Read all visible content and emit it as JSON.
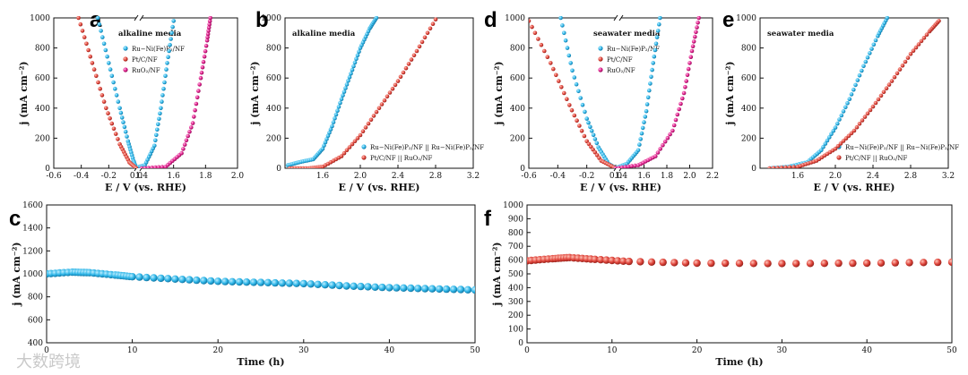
{
  "colors": {
    "blue": "#2fb6e8",
    "red": "#e0463d",
    "magenta": "#e0208c"
  },
  "watermark": "大数跨境",
  "chart_data": [
    {
      "panel": "a",
      "type": "scatter",
      "note": "alkaline media",
      "xlabel": "E / V (vs. RHE)",
      "ylabel": "j (mA cm⁻²)",
      "xlim": [
        -0.6,
        2.0
      ],
      "xticks": [
        "-0.6",
        "-0.4",
        "-0.2",
        "0.0",
        "1.4",
        "1.6",
        "1.8",
        "2.0"
      ],
      "ylim": [
        0,
        1000
      ],
      "yticks": [
        "0",
        "200",
        "400",
        "600",
        "800",
        "1000"
      ],
      "axis_break": true,
      "legend": [
        "Ru−Ni(Fe)P₂/NF",
        "Pt/C/NF",
        "RuO₂/NF"
      ],
      "series": [
        {
          "name": "Ru−Ni(Fe)P₂/NF",
          "color": "blue",
          "branches": [
            {
              "x": [
                -0.28,
                -0.2,
                -0.12,
                -0.06,
                -0.02,
                0.0
              ],
              "y": [
                1000,
                700,
                400,
                180,
                50,
                0
              ]
            },
            {
              "x": [
                1.35,
                1.42,
                1.48,
                1.52,
                1.56,
                1.6
              ],
              "y": [
                0,
                20,
                150,
                400,
                700,
                980
              ]
            }
          ]
        },
        {
          "name": "Pt/C/NF",
          "color": "red",
          "branches": [
            {
              "x": [
                -0.42,
                -0.32,
                -0.22,
                -0.12,
                -0.05,
                0.0
              ],
              "y": [
                1000,
                700,
                400,
                160,
                40,
                0
              ]
            }
          ]
        },
        {
          "name": "RuO₂/NF",
          "color": "magenta",
          "branches": [
            {
              "x": [
                1.4,
                1.55,
                1.65,
                1.72,
                1.77,
                1.81,
                1.83
              ],
              "y": [
                0,
                10,
                100,
                300,
                600,
                850,
                1000
              ]
            }
          ]
        }
      ]
    },
    {
      "panel": "b",
      "type": "scatter",
      "note": "alkaline media",
      "xlabel": "E / V (vs. RHE)",
      "ylabel": "j (mA cm⁻²)",
      "xlim": [
        1.2,
        3.2
      ],
      "xticks": [
        "1.6",
        "2.0",
        "2.4",
        "2.8",
        "3.2"
      ],
      "ylim": [
        0,
        1000
      ],
      "yticks": [
        "0",
        "200",
        "400",
        "600",
        "800",
        "1000"
      ],
      "legend": [
        "Ru−Ni(Fe)P₂/NF || Ru−Ni(Fe)P₂/NF",
        "Pt/C/NF || RuO₂/NF"
      ],
      "series": [
        {
          "name": "Ru−Ni(Fe)P₂/NF || Ru−Ni(Fe)P₂/NF",
          "color": "blue",
          "x": [
            1.23,
            1.35,
            1.5,
            1.6,
            1.7,
            1.8,
            1.9,
            2.0,
            2.1,
            2.17
          ],
          "y": [
            20,
            40,
            60,
            130,
            280,
            460,
            630,
            800,
            930,
            1000
          ]
        },
        {
          "name": "Pt/C/NF || RuO₂/NF",
          "color": "red",
          "x": [
            1.25,
            1.45,
            1.6,
            1.8,
            2.0,
            2.2,
            2.4,
            2.6,
            2.8
          ],
          "y": [
            0,
            0,
            10,
            80,
            220,
            400,
            580,
            780,
            990
          ]
        }
      ]
    },
    {
      "panel": "c",
      "type": "scatter",
      "xlabel": "Time (h)",
      "ylabel": "j (mA cm⁻²)",
      "xlim": [
        0,
        50
      ],
      "xticks": [
        "0",
        "10",
        "20",
        "30",
        "40",
        "50"
      ],
      "ylim": [
        400,
        1600
      ],
      "yticks": [
        "400",
        "600",
        "800",
        "1000",
        "1200",
        "1400",
        "1600"
      ],
      "series": [
        {
          "name": "stability",
          "color": "blue",
          "x": [
            0,
            3,
            5,
            8,
            10,
            15,
            20,
            25,
            30,
            35,
            40,
            45,
            50
          ],
          "y": [
            1000,
            1015,
            1010,
            990,
            975,
            955,
            935,
            925,
            915,
            895,
            880,
            870,
            860
          ]
        }
      ]
    },
    {
      "panel": "d",
      "type": "scatter",
      "note": "seawater media",
      "xlabel": "E / V (vs. RHE)",
      "ylabel": "j (mA cm⁻²)",
      "xlim": [
        -0.6,
        2.2
      ],
      "xticks": [
        "-0.6",
        "-0.4",
        "-0.2",
        "0.0",
        "1.4",
        "1.6",
        "1.8",
        "2.0",
        "2.2"
      ],
      "ylim": [
        0,
        1000
      ],
      "yticks": [
        "0",
        "200",
        "400",
        "600",
        "800",
        "1000"
      ],
      "axis_break": true,
      "legend": [
        "Ru−Ni(Fe)P₂/NF",
        "Pt/C/NF",
        "RuO₂/NF"
      ],
      "series": [
        {
          "name": "Ru−Ni(Fe)P₂/NF",
          "color": "blue",
          "branches": [
            {
              "x": [
                -0.38,
                -0.3,
                -0.2,
                -0.12,
                -0.05,
                0.0
              ],
              "y": [
                1000,
                650,
                330,
                140,
                30,
                0
              ]
            },
            {
              "x": [
                1.35,
                1.45,
                1.55,
                1.62,
                1.68,
                1.74
              ],
              "y": [
                0,
                30,
                120,
                380,
                700,
                1000
              ]
            }
          ]
        },
        {
          "name": "Pt/C/NF",
          "color": "red",
          "branches": [
            {
              "x": [
                -0.6,
                -0.45,
                -0.32,
                -0.2,
                -0.1,
                0.0
              ],
              "y": [
                980,
                700,
                420,
                180,
                50,
                0
              ]
            }
          ]
        },
        {
          "name": "RuO₂/NF",
          "color": "magenta",
          "branches": [
            {
              "x": [
                1.35,
                1.55,
                1.7,
                1.85,
                1.95,
                2.02,
                2.08
              ],
              "y": [
                0,
                20,
                80,
                250,
                500,
                780,
                1000
              ]
            }
          ]
        }
      ]
    },
    {
      "panel": "e",
      "type": "scatter",
      "note": "seawater media",
      "xlabel": "E / V (vs. RHE)",
      "ylabel": "j (mA cm⁻²)",
      "xlim": [
        1.2,
        3.2
      ],
      "xticks": [
        "1.6",
        "2.0",
        "2.4",
        "2.8",
        "3.2"
      ],
      "ylim": [
        0,
        1000
      ],
      "yticks": [
        "0",
        "200",
        "400",
        "600",
        "800",
        "1000"
      ],
      "legend": [
        "Ru−Ni(Fe)P₂/NF || Ru−Ni(Fe)P₂/NF",
        "Pt/C/NF || RuO₂/NF"
      ],
      "series": [
        {
          "name": "Ru−Ni(Fe)P₂/NF || Ru−Ni(Fe)P₂/NF",
          "color": "blue",
          "x": [
            1.3,
            1.5,
            1.7,
            1.85,
            2.0,
            2.15,
            2.3,
            2.45,
            2.55
          ],
          "y": [
            0,
            10,
            40,
            120,
            270,
            460,
            680,
            880,
            1000
          ]
        },
        {
          "name": "Pt/C/NF || RuO₂/NF",
          "color": "red",
          "x": [
            1.3,
            1.6,
            1.8,
            2.0,
            2.2,
            2.4,
            2.6,
            2.8,
            3.0,
            3.1
          ],
          "y": [
            0,
            10,
            50,
            130,
            250,
            410,
            580,
            760,
            910,
            980
          ]
        }
      ]
    },
    {
      "panel": "f",
      "type": "scatter",
      "xlabel": "Time (h)",
      "ylabel": "j (mA cm⁻²)",
      "xlim": [
        0,
        50
      ],
      "xticks": [
        "0",
        "10",
        "20",
        "30",
        "40",
        "50"
      ],
      "ylim": [
        0,
        1000
      ],
      "yticks": [
        "0",
        "100",
        "200",
        "300",
        "400",
        "500",
        "600",
        "700",
        "800",
        "900",
        "1000"
      ],
      "series": [
        {
          "name": "stability",
          "color": "red",
          "x": [
            0,
            3,
            5,
            8,
            12,
            20,
            30,
            40,
            50
          ],
          "y": [
            595,
            610,
            618,
            605,
            590,
            578,
            575,
            578,
            585
          ]
        }
      ]
    }
  ]
}
